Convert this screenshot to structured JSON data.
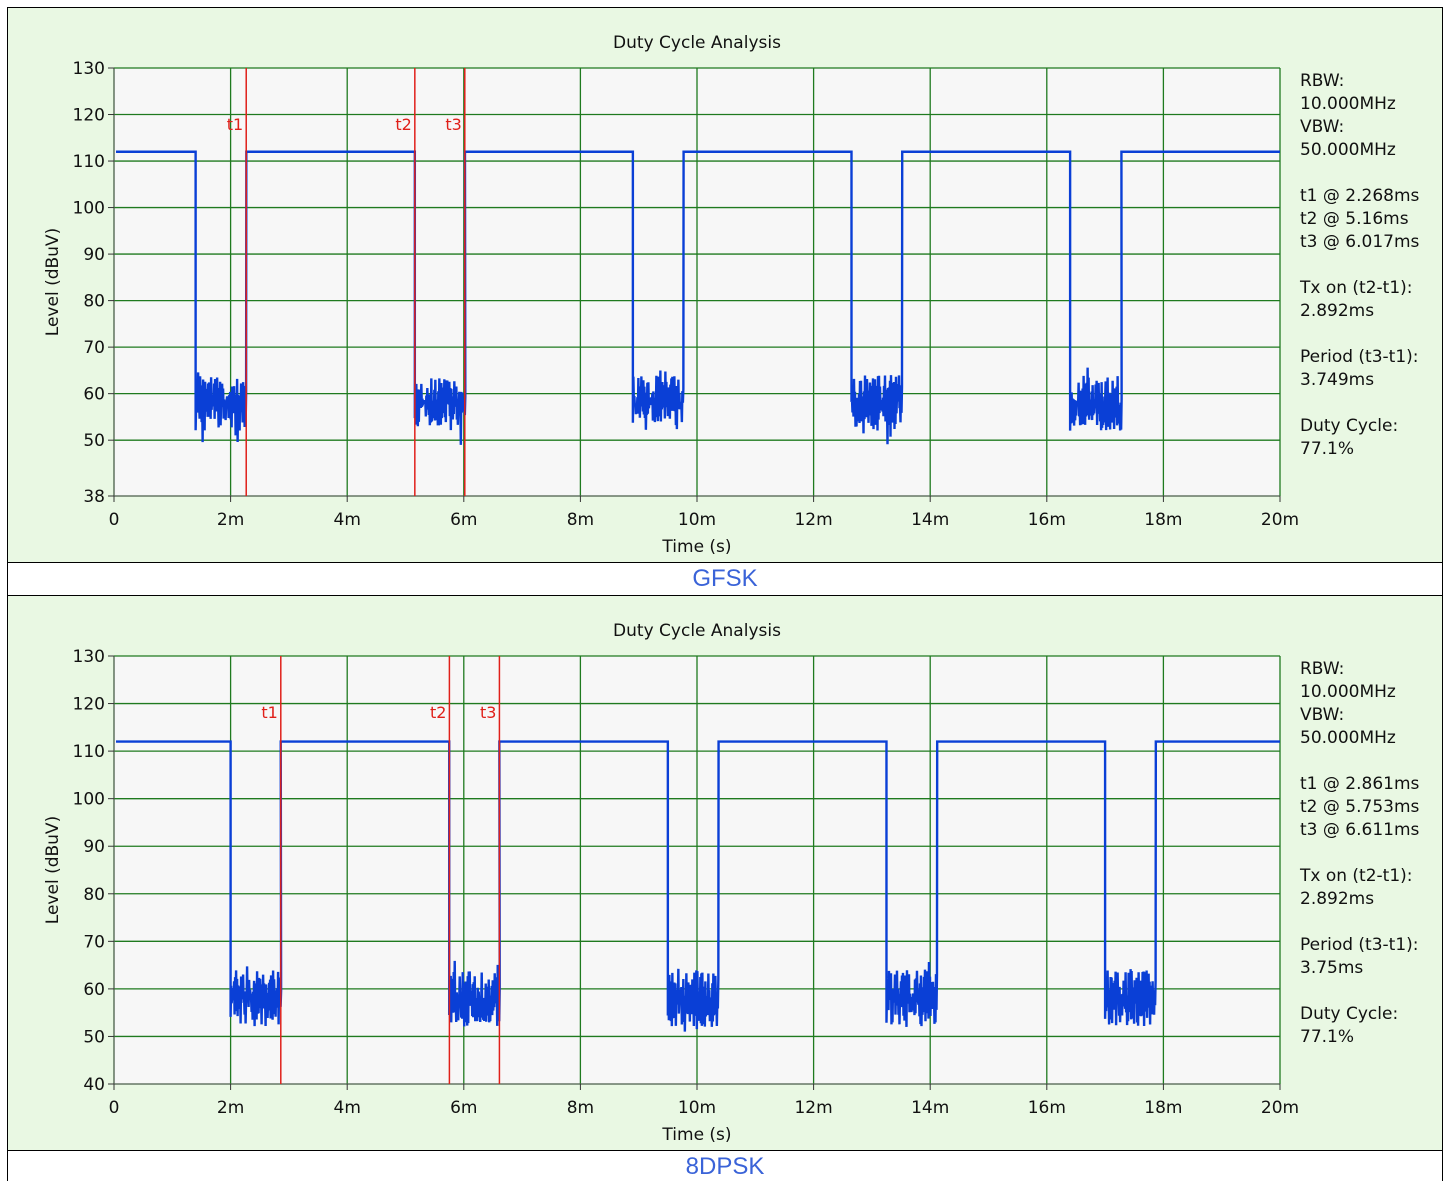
{
  "colors": {
    "panel_bg": "#e9f8e3",
    "plot_bg": "#f7f7f7",
    "grid": "#1f7a1f",
    "trace": "#0a3fd6",
    "cursor": "#e0201a",
    "caption": "#3a63d8"
  },
  "chart_data": [
    {
      "type": "line",
      "title": "Duty Cycle Analysis",
      "xlabel": "Time (s)",
      "ylabel": "Level (dBuV)",
      "xlim": [
        0,
        20
      ],
      "ylim": [
        38,
        130
      ],
      "x_ticks": [
        0,
        2,
        4,
        6,
        8,
        10,
        12,
        14,
        16,
        18,
        20
      ],
      "x_tick_labels": [
        "0",
        "2m",
        "4m",
        "6m",
        "8m",
        "10m",
        "12m",
        "14m",
        "16m",
        "18m",
        "20m"
      ],
      "y_ticks": [
        38,
        50,
        60,
        70,
        80,
        90,
        100,
        110,
        120,
        130
      ],
      "y_tick_labels": [
        "38",
        "50",
        "60",
        "70",
        "80",
        "90",
        "100",
        "110",
        "120",
        "130"
      ],
      "grid": true,
      "series": [
        {
          "high_level": 112,
          "low_band": [
            52,
            64
          ],
          "low_intervals_ms": [
            [
              1.4,
              2.27
            ],
            [
              5.16,
              6.02
            ],
            [
              8.9,
              9.77
            ],
            [
              12.65,
              13.52
            ],
            [
              16.4,
              17.28
            ]
          ]
        }
      ],
      "cursors": [
        {
          "label": "t1",
          "x": 2.268
        },
        {
          "label": "t2",
          "x": 5.16
        },
        {
          "label": "t3",
          "x": 6.017
        }
      ],
      "info_lines": [
        "RBW:",
        "10.000MHz",
        "VBW:",
        "50.000MHz",
        "",
        "t1 @ 2.268ms",
        "t2 @ 5.16ms",
        "t3 @ 6.017ms",
        "",
        "Tx on (t2-t1):",
        "2.892ms",
        "",
        "Period (t3-t1):",
        "3.749ms",
        "",
        "Duty Cycle:",
        "77.1%"
      ],
      "caption": "GFSK"
    },
    {
      "type": "line",
      "title": "Duty Cycle Analysis",
      "xlabel": "Time (s)",
      "ylabel": "Level (dBuV)",
      "xlim": [
        0,
        20
      ],
      "ylim": [
        40,
        130
      ],
      "x_ticks": [
        0,
        2,
        4,
        6,
        8,
        10,
        12,
        14,
        16,
        18,
        20
      ],
      "x_tick_labels": [
        "0",
        "2m",
        "4m",
        "6m",
        "8m",
        "10m",
        "12m",
        "14m",
        "16m",
        "18m",
        "20m"
      ],
      "y_ticks": [
        40,
        50,
        60,
        70,
        80,
        90,
        100,
        110,
        120,
        130
      ],
      "y_tick_labels": [
        "40",
        "50",
        "60",
        "70",
        "80",
        "90",
        "100",
        "110",
        "120",
        "130"
      ],
      "grid": true,
      "series": [
        {
          "high_level": 112,
          "low_band": [
            52,
            64
          ],
          "low_intervals_ms": [
            [
              2.0,
              2.86
            ],
            [
              5.75,
              6.61
            ],
            [
              9.5,
              10.37
            ],
            [
              13.25,
              14.12
            ],
            [
              17.0,
              17.87
            ]
          ]
        }
      ],
      "cursors": [
        {
          "label": "t1",
          "x": 2.861
        },
        {
          "label": "t2",
          "x": 5.753
        },
        {
          "label": "t3",
          "x": 6.611
        }
      ],
      "info_lines": [
        "RBW:",
        "10.000MHz",
        "VBW:",
        "50.000MHz",
        "",
        "t1 @ 2.861ms",
        "t2 @ 5.753ms",
        "t3 @ 6.611ms",
        "",
        "Tx on (t2-t1):",
        "2.892ms",
        "",
        "Period (t3-t1):",
        "3.75ms",
        "",
        "Duty Cycle:",
        "77.1%"
      ],
      "caption": "8DPSK"
    }
  ]
}
